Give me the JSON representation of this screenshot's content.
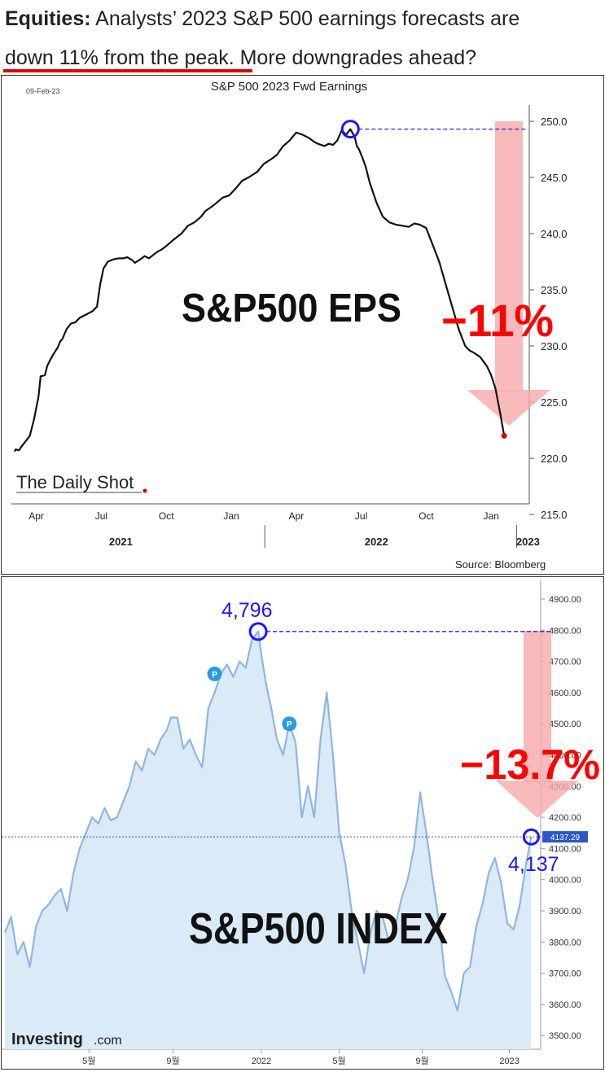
{
  "header": {
    "line1_bold": "Equities:",
    "line1_rest": " Analysts’ 2023 S&P 500 earnings forecasts are",
    "line2_underlined": "down 11% from the peak",
    "line2_rest": ". More downgrades ahead?"
  },
  "chart_data": [
    {
      "type": "line",
      "title": "S&P 500 2023 Fwd Earnings",
      "date_label": "09-Feb-23",
      "overlay_label": "S&P500 EPS",
      "change_label": "−11%",
      "source": "Source: Bloomberg",
      "logo": "The Daily Shot",
      "x_tick_labels": [
        "Apr",
        "Jul",
        "Oct",
        "Jan",
        "Apr",
        "Jul",
        "Oct",
        "Jan"
      ],
      "x_tick_months": [
        1,
        4,
        7,
        10,
        13,
        16,
        19,
        22
      ],
      "year_labels": [
        "2021",
        "2022",
        "2023"
      ],
      "y_tick_labels": [
        "250.0",
        "245.0",
        "240.0",
        "235.0",
        "230.0",
        "225.0",
        "220.0",
        "215.0"
      ],
      "ylim": [
        215,
        250
      ],
      "x_unit": "months since Jan 2021",
      "series": [
        {
          "x": [
            0.0,
            0.05,
            0.2,
            0.3,
            0.5,
            0.7,
            0.9,
            1.1,
            1.2,
            1.4,
            1.5,
            1.65,
            1.8,
            2.0,
            2.1,
            2.2,
            2.4,
            2.6,
            2.8,
            3.0,
            3.3,
            3.6,
            3.8,
            3.95,
            4.1,
            4.3,
            4.55,
            4.8,
            5.0,
            5.2,
            5.45,
            5.55,
            5.8,
            6.0,
            6.2,
            6.4,
            6.6,
            6.8,
            7.0,
            7.3,
            7.7,
            8.0,
            8.3,
            8.6,
            8.8,
            9.1,
            9.3,
            9.6,
            9.9,
            10.2,
            10.5,
            10.8,
            11.2,
            11.5,
            11.9,
            12.1,
            12.4,
            12.7,
            13.0,
            13.3,
            13.6,
            13.8,
            14.0,
            14.3,
            14.5,
            14.7,
            14.9,
            15.1,
            15.3,
            15.5,
            15.7,
            15.8,
            15.9,
            16.05,
            16.2,
            16.4,
            16.7,
            17.0,
            17.3,
            17.6,
            17.9,
            18.2,
            18.45,
            18.7,
            19.0,
            19.3,
            19.6,
            19.9,
            20.2,
            20.5,
            20.8,
            21.0,
            21.2,
            21.5,
            21.8,
            22.0,
            22.2,
            22.4,
            22.6
          ],
          "y": [
            220.6,
            220.8,
            220.7,
            221.0,
            221.5,
            222.0,
            223.5,
            225.5,
            227.3,
            227.4,
            228.2,
            228.8,
            229.3,
            229.9,
            230.4,
            230.6,
            231.5,
            232.0,
            232.1,
            232.5,
            232.8,
            233.1,
            233.5,
            235.5,
            236.9,
            237.5,
            237.7,
            237.8,
            237.8,
            237.9,
            237.6,
            237.4,
            237.7,
            238.0,
            237.8,
            238.1,
            238.4,
            238.6,
            238.9,
            239.4,
            240.0,
            240.7,
            241.0,
            241.5,
            242.0,
            242.4,
            242.7,
            243.2,
            243.4,
            244.0,
            244.7,
            245.0,
            245.5,
            246.2,
            246.7,
            247.0,
            247.8,
            248.3,
            249.0,
            248.8,
            248.5,
            248.2,
            248.0,
            247.8,
            248.0,
            247.9,
            248.3,
            249.2,
            248.8,
            249.3,
            248.6,
            247.8,
            247.5,
            246.8,
            246.0,
            244.5,
            242.8,
            241.5,
            241.0,
            240.8,
            240.7,
            240.6,
            240.9,
            240.8,
            240.5,
            239.0,
            237.5,
            235.5,
            233.5,
            231.5,
            230.0,
            229.6,
            229.4,
            229.0,
            228.2,
            227.4,
            226.2,
            224.2,
            222.0
          ]
        }
      ],
      "peak_marker": {
        "x": 15.5,
        "y": 249.3
      },
      "end_marker": {
        "x": 22.6,
        "y": 222.0
      },
      "colors": {
        "line": "#111111",
        "arrow": "#f4a3a3",
        "change": "#ff0000",
        "marker": "#1a17ff",
        "end_dot": "#e00000"
      }
    },
    {
      "type": "area",
      "overlay_label": "S&P500 INDEX",
      "change_label": "−13.7%",
      "peak_label": "4,796",
      "current_label": "4,137",
      "price_tag": "4137.29",
      "logo": "Investing",
      "logo_suffix": ".com",
      "event_badges": [
        "P",
        "P"
      ],
      "x_tick_labels": [
        "5월",
        "9월",
        "2022",
        "5월",
        "9월",
        "2023"
      ],
      "x_tick_months": [
        4.05,
        8.1,
        12.35,
        16.1,
        20.1,
        24.3
      ],
      "y_tick_labels": [
        "4900.00",
        "4800.00",
        "4700.00",
        "4600.00",
        "4500.00",
        "4400.00",
        "4300.00",
        "4200.00",
        "4100.00",
        "4000.00",
        "3900.00",
        "3800.00",
        "3700.00",
        "3600.00",
        "3500.00"
      ],
      "ylim": [
        3450,
        4930
      ],
      "x_unit": "months since Jan 2021",
      "series": [
        {
          "x": [
            0.0,
            0.3,
            0.6,
            0.9,
            1.2,
            1.5,
            1.8,
            2.1,
            2.4,
            2.7,
            3.0,
            3.3,
            3.6,
            3.9,
            4.2,
            4.5,
            4.8,
            5.1,
            5.4,
            5.7,
            6.0,
            6.3,
            6.6,
            6.9,
            7.2,
            7.5,
            7.8,
            8.0,
            8.3,
            8.6,
            8.9,
            9.2,
            9.5,
            9.8,
            10.1,
            10.4,
            10.7,
            11.0,
            11.3,
            11.6,
            11.9,
            12.2,
            12.4,
            12.6,
            12.8,
            13.1,
            13.4,
            13.7,
            14.0,
            14.3,
            14.6,
            14.9,
            15.2,
            15.5,
            15.8,
            16.1,
            16.4,
            16.7,
            17.0,
            17.3,
            17.6,
            17.9,
            18.2,
            18.5,
            18.8,
            19.1,
            19.4,
            19.7,
            20.0,
            20.3,
            20.6,
            20.9,
            21.2,
            21.5,
            21.8,
            22.1,
            22.4,
            22.7,
            23.0,
            23.3,
            23.6,
            23.9,
            24.2,
            24.5,
            24.8,
            25.1,
            25.35
          ],
          "y": [
            3830,
            3880,
            3760,
            3800,
            3720,
            3850,
            3900,
            3920,
            3950,
            3970,
            3900,
            4020,
            4100,
            4150,
            4200,
            4180,
            4230,
            4190,
            4200,
            4250,
            4300,
            4380,
            4350,
            4420,
            4400,
            4450,
            4480,
            4520,
            4520,
            4420,
            4450,
            4400,
            4360,
            4550,
            4600,
            4660,
            4690,
            4650,
            4700,
            4680,
            4770,
            4796,
            4700,
            4620,
            4560,
            4450,
            4400,
            4500,
            4440,
            4200,
            4300,
            4200,
            4450,
            4600,
            4400,
            4150,
            4050,
            3900,
            3800,
            3700,
            3830,
            3900,
            3880,
            3800,
            3850,
            3940,
            4000,
            4100,
            4280,
            4150,
            4000,
            3870,
            3690,
            3640,
            3580,
            3700,
            3720,
            3850,
            3920,
            4020,
            4070,
            3990,
            3860,
            3840,
            3920,
            4050,
            4137
          ]
        }
      ],
      "reference_line": 4137.29,
      "peak_marker": {
        "x": 12.2,
        "y": 4796
      },
      "current_marker": {
        "x": 25.35,
        "y": 4137
      },
      "colors": {
        "line": "#8fb6e2",
        "fill": "#daeaf7",
        "arrow": "#f4a3a3",
        "change": "#ff0000",
        "marker": "#1a17ff",
        "badge": "#2a9be0",
        "price_tag": "#2b57c8"
      }
    }
  ]
}
